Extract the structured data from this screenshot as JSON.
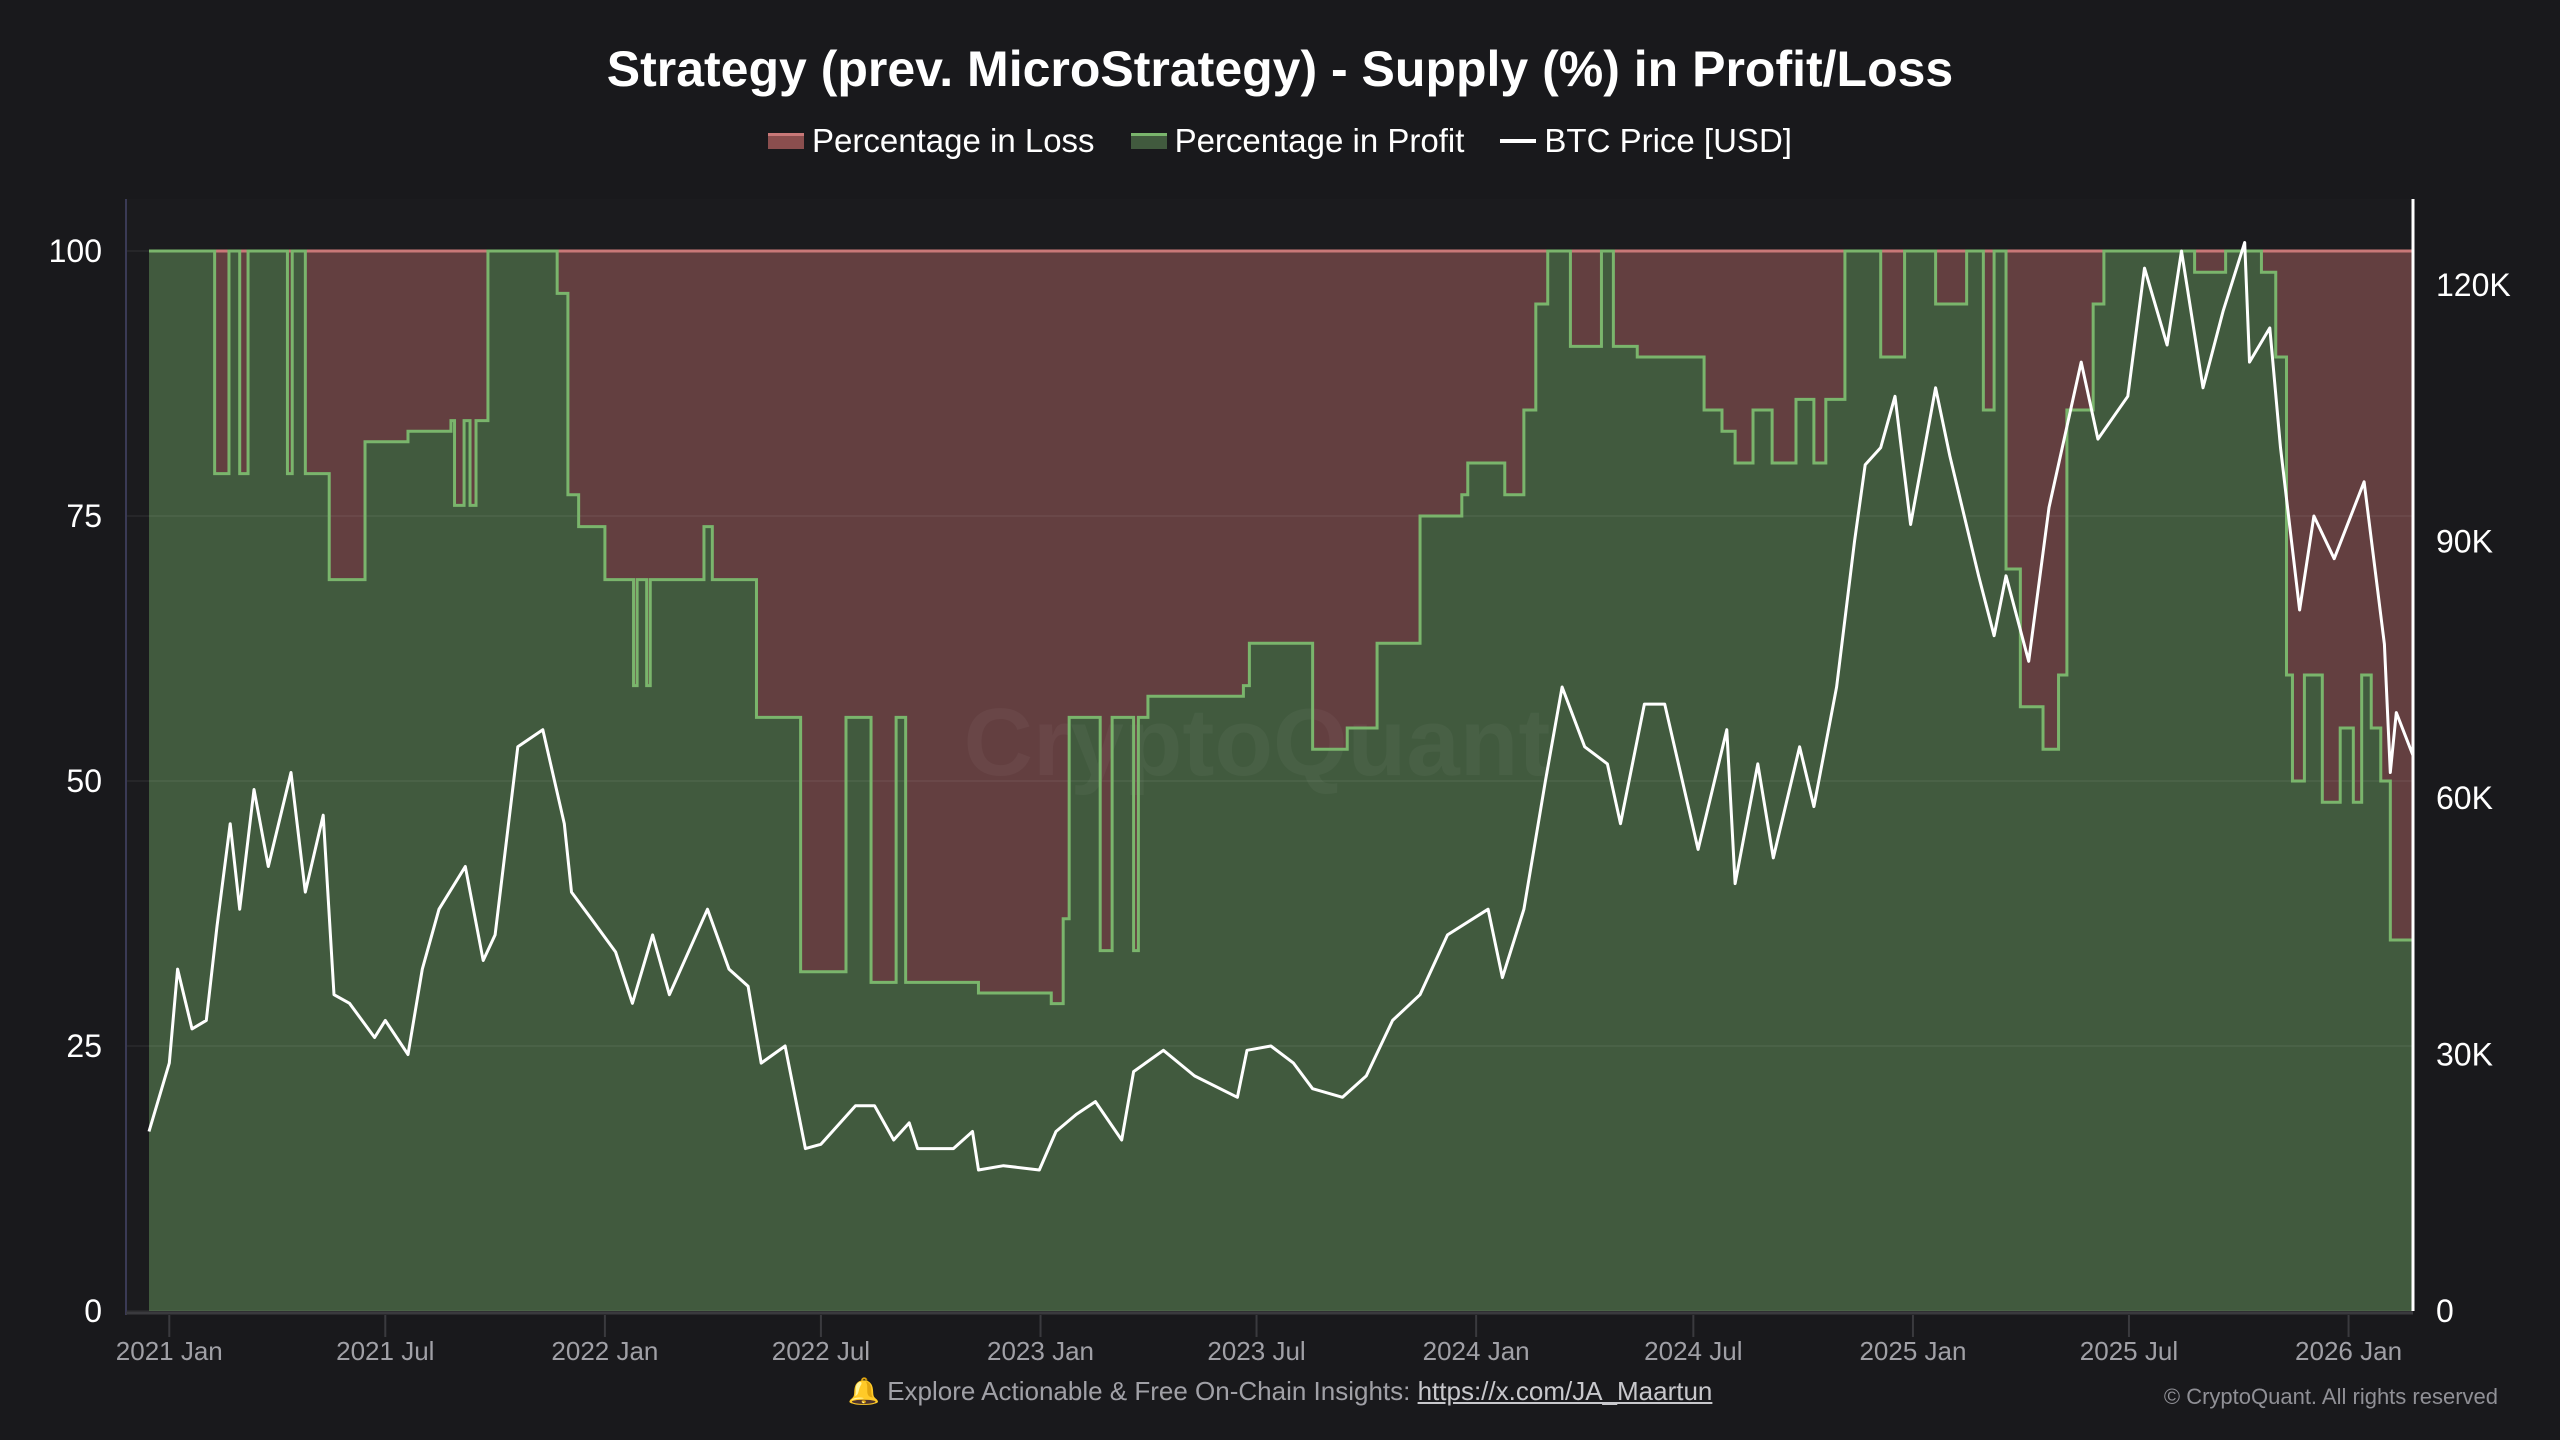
{
  "chart_data": {
    "type": "area",
    "title": "Strategy (prev. MicroStrategy) - Supply (%) in Profit/Loss",
    "legend": {
      "placement": "top-center",
      "entries": [
        "Percentage in Loss",
        "Percentage in Profit",
        "BTC Price [USD]"
      ]
    },
    "xlabel": "",
    "ylabel": "",
    "y2label": "",
    "x_range": [
      "2020-12-15",
      "2026-02-24"
    ],
    "x_ticks": [
      "2021 Jan",
      "2021 Jul",
      "2022 Jan",
      "2022 Jul",
      "2023 Jan",
      "2023 Jul",
      "2024 Jan",
      "2024 Jul",
      "2025 Jan",
      "2025 Jul",
      "2026 Jan"
    ],
    "y_left": {
      "ylim": [
        0,
        100
      ],
      "ticks": [
        "0",
        "25",
        "50",
        "75",
        "100"
      ]
    },
    "y_right": {
      "ylim": [
        0,
        124000
      ],
      "ticks": [
        "0",
        "30K",
        "60K",
        "90K",
        "120K"
      ]
    },
    "grid": true,
    "colors": {
      "loss_fill": "#633f40",
      "loss_line": "#c87878",
      "profit_fill": "#415a3e",
      "profit_line": "#7ab56c",
      "price_line": "#ffffff",
      "background": "#19191c"
    },
    "series": [
      {
        "name": "Percentage in Profit",
        "axis": "left",
        "step": true,
        "points": [
          [
            "2020-12-15",
            100
          ],
          [
            "2021-02-08",
            79
          ],
          [
            "2021-02-20",
            100
          ],
          [
            "2021-03-01",
            79
          ],
          [
            "2021-03-08",
            100
          ],
          [
            "2021-04-10",
            79
          ],
          [
            "2021-04-14",
            100
          ],
          [
            "2021-04-25",
            79
          ],
          [
            "2021-05-15",
            69
          ],
          [
            "2021-06-14",
            82
          ],
          [
            "2021-07-20",
            83
          ],
          [
            "2021-08-25",
            84
          ],
          [
            "2021-08-28",
            76
          ],
          [
            "2021-09-05",
            84
          ],
          [
            "2021-09-10",
            76
          ],
          [
            "2021-09-15",
            84
          ],
          [
            "2021-09-25",
            100
          ],
          [
            "2021-11-22",
            96
          ],
          [
            "2021-12-01",
            77
          ],
          [
            "2021-12-10",
            74
          ],
          [
            "2022-01-01",
            69
          ],
          [
            "2022-01-25",
            59
          ],
          [
            "2022-01-28",
            69
          ],
          [
            "2022-02-05",
            59
          ],
          [
            "2022-02-08",
            69
          ],
          [
            "2022-03-25",
            74
          ],
          [
            "2022-04-01",
            69
          ],
          [
            "2022-05-08",
            56
          ],
          [
            "2022-06-14",
            32
          ],
          [
            "2022-07-22",
            56
          ],
          [
            "2022-08-12",
            31
          ],
          [
            "2022-09-02",
            56
          ],
          [
            "2022-09-10",
            31
          ],
          [
            "2022-11-10",
            30
          ],
          [
            "2023-01-10",
            29
          ],
          [
            "2023-01-20",
            37
          ],
          [
            "2023-01-25",
            56
          ],
          [
            "2023-02-20",
            34
          ],
          [
            "2023-03-02",
            56
          ],
          [
            "2023-03-20",
            34
          ],
          [
            "2023-03-24",
            56
          ],
          [
            "2023-04-01",
            58
          ],
          [
            "2023-06-20",
            59
          ],
          [
            "2023-06-25",
            63
          ],
          [
            "2023-08-17",
            53
          ],
          [
            "2023-09-15",
            55
          ],
          [
            "2023-10-10",
            63
          ],
          [
            "2023-11-15",
            75
          ],
          [
            "2023-12-20",
            77
          ],
          [
            "2023-12-25",
            80
          ],
          [
            "2024-01-25",
            77
          ],
          [
            "2024-02-10",
            85
          ],
          [
            "2024-02-20",
            95
          ],
          [
            "2024-03-01",
            100
          ],
          [
            "2024-03-20",
            91
          ],
          [
            "2024-04-15",
            100
          ],
          [
            "2024-04-25",
            91
          ],
          [
            "2024-05-15",
            90
          ],
          [
            "2024-07-10",
            85
          ],
          [
            "2024-07-25",
            83
          ],
          [
            "2024-08-05",
            80
          ],
          [
            "2024-08-20",
            85
          ],
          [
            "2024-09-05",
            80
          ],
          [
            "2024-09-25",
            86
          ],
          [
            "2024-10-10",
            80
          ],
          [
            "2024-10-20",
            86
          ],
          [
            "2024-11-05",
            100
          ],
          [
            "2024-12-05",
            90
          ],
          [
            "2024-12-25",
            100
          ],
          [
            "2025-01-20",
            95
          ],
          [
            "2025-02-15",
            100
          ],
          [
            "2025-03-01",
            85
          ],
          [
            "2025-03-10",
            100
          ],
          [
            "2025-03-20",
            70
          ],
          [
            "2025-04-01",
            57
          ],
          [
            "2025-04-20",
            53
          ],
          [
            "2025-05-03",
            60
          ],
          [
            "2025-05-10",
            85
          ],
          [
            "2025-06-01",
            95
          ],
          [
            "2025-06-10",
            100
          ],
          [
            "2025-08-25",
            98
          ],
          [
            "2025-09-20",
            100
          ],
          [
            "2025-10-20",
            98
          ],
          [
            "2025-11-01",
            90
          ],
          [
            "2025-11-10",
            60
          ],
          [
            "2025-11-15",
            50
          ],
          [
            "2025-11-25",
            60
          ],
          [
            "2025-12-10",
            48
          ],
          [
            "2025-12-25",
            55
          ],
          [
            "2026-01-05",
            48
          ],
          [
            "2026-01-12",
            60
          ],
          [
            "2026-01-20",
            55
          ],
          [
            "2026-01-28",
            50
          ],
          [
            "2026-02-05",
            35
          ],
          [
            "2026-02-24",
            32
          ]
        ]
      },
      {
        "name": "Percentage in Loss",
        "axis": "left",
        "note_fill": "complement of profit up to 100"
      },
      {
        "name": "BTC Price [USD]",
        "axis": "right",
        "points": [
          [
            "2020-12-15",
            21000
          ],
          [
            "2021-01-01",
            29000
          ],
          [
            "2021-01-08",
            40000
          ],
          [
            "2021-01-20",
            33000
          ],
          [
            "2021-02-01",
            34000
          ],
          [
            "2021-02-10",
            45000
          ],
          [
            "2021-02-21",
            57000
          ],
          [
            "2021-03-01",
            47000
          ],
          [
            "2021-03-13",
            61000
          ],
          [
            "2021-03-25",
            52000
          ],
          [
            "2021-04-13",
            63000
          ],
          [
            "2021-04-25",
            49000
          ],
          [
            "2021-05-10",
            58000
          ],
          [
            "2021-05-19",
            37000
          ],
          [
            "2021-06-01",
            36000
          ],
          [
            "2021-06-22",
            32000
          ],
          [
            "2021-07-01",
            34000
          ],
          [
            "2021-07-20",
            30000
          ],
          [
            "2021-08-01",
            40000
          ],
          [
            "2021-08-15",
            47000
          ],
          [
            "2021-09-06",
            52000
          ],
          [
            "2021-09-21",
            41000
          ],
          [
            "2021-10-01",
            44000
          ],
          [
            "2021-10-20",
            66000
          ],
          [
            "2021-11-10",
            68000
          ],
          [
            "2021-11-28",
            57000
          ],
          [
            "2021-12-04",
            49000
          ],
          [
            "2021-12-20",
            46000
          ],
          [
            "2022-01-10",
            42000
          ],
          [
            "2022-01-24",
            36000
          ],
          [
            "2022-02-10",
            44000
          ],
          [
            "2022-02-24",
            37000
          ],
          [
            "2022-03-28",
            47000
          ],
          [
            "2022-04-15",
            40000
          ],
          [
            "2022-05-01",
            38000
          ],
          [
            "2022-05-12",
            29000
          ],
          [
            "2022-06-01",
            31000
          ],
          [
            "2022-06-18",
            19000
          ],
          [
            "2022-07-01",
            19500
          ],
          [
            "2022-07-30",
            24000
          ],
          [
            "2022-08-15",
            24000
          ],
          [
            "2022-08-31",
            20000
          ],
          [
            "2022-09-13",
            22000
          ],
          [
            "2022-09-20",
            19000
          ],
          [
            "2022-10-20",
            19000
          ],
          [
            "2022-11-05",
            21000
          ],
          [
            "2022-11-10",
            16500
          ],
          [
            "2022-12-01",
            17000
          ],
          [
            "2022-12-31",
            16500
          ],
          [
            "2023-01-14",
            21000
          ],
          [
            "2023-01-31",
            23000
          ],
          [
            "2023-02-16",
            24500
          ],
          [
            "2023-03-10",
            20000
          ],
          [
            "2023-03-20",
            28000
          ],
          [
            "2023-04-14",
            30500
          ],
          [
            "2023-05-10",
            27500
          ],
          [
            "2023-06-15",
            25000
          ],
          [
            "2023-06-23",
            30500
          ],
          [
            "2023-07-13",
            31000
          ],
          [
            "2023-08-01",
            29000
          ],
          [
            "2023-08-17",
            26000
          ],
          [
            "2023-09-11",
            25000
          ],
          [
            "2023-10-01",
            27500
          ],
          [
            "2023-10-23",
            34000
          ],
          [
            "2023-11-15",
            37000
          ],
          [
            "2023-12-08",
            44000
          ],
          [
            "2024-01-11",
            47000
          ],
          [
            "2024-01-23",
            39000
          ],
          [
            "2024-02-10",
            47000
          ],
          [
            "2024-02-28",
            62000
          ],
          [
            "2024-03-13",
            73000
          ],
          [
            "2024-04-01",
            66000
          ],
          [
            "2024-04-20",
            64000
          ],
          [
            "2024-05-01",
            57000
          ],
          [
            "2024-05-21",
            71000
          ],
          [
            "2024-06-07",
            71000
          ],
          [
            "2024-07-05",
            54000
          ],
          [
            "2024-07-29",
            68000
          ],
          [
            "2024-08-05",
            50000
          ],
          [
            "2024-08-24",
            64000
          ],
          [
            "2024-09-06",
            53000
          ],
          [
            "2024-09-28",
            66000
          ],
          [
            "2024-10-10",
            59000
          ],
          [
            "2024-10-29",
            73000
          ],
          [
            "2024-11-13",
            90000
          ],
          [
            "2024-11-22",
            99000
          ],
          [
            "2024-12-05",
            101000
          ],
          [
            "2024-12-17",
            107000
          ],
          [
            "2024-12-30",
            92000
          ],
          [
            "2025-01-20",
            108000
          ],
          [
            "2025-02-01",
            100000
          ],
          [
            "2025-02-25",
            86000
          ],
          [
            "2025-03-10",
            79000
          ],
          [
            "2025-03-20",
            86000
          ],
          [
            "2025-04-08",
            76000
          ],
          [
            "2025-04-25",
            94000
          ],
          [
            "2025-05-22",
            111000
          ],
          [
            "2025-06-05",
            102000
          ],
          [
            "2025-06-30",
            107000
          ],
          [
            "2025-07-14",
            122000
          ],
          [
            "2025-08-02",
            113000
          ],
          [
            "2025-08-14",
            124000
          ],
          [
            "2025-09-01",
            108000
          ],
          [
            "2025-09-18",
            117000
          ],
          [
            "2025-10-06",
            125000
          ],
          [
            "2025-10-10",
            111000
          ],
          [
            "2025-10-27",
            115000
          ],
          [
            "2025-11-05",
            101000
          ],
          [
            "2025-11-21",
            82000
          ],
          [
            "2025-12-03",
            93000
          ],
          [
            "2025-12-20",
            88000
          ],
          [
            "2026-01-14",
            97000
          ],
          [
            "2026-01-31",
            78000
          ],
          [
            "2026-02-05",
            63000
          ],
          [
            "2026-02-10",
            70000
          ],
          [
            "2026-02-24",
            65000
          ]
        ]
      }
    ],
    "watermark": "CryptoQuant"
  },
  "footer": {
    "bell_icon": "bell-icon",
    "text": "Explore Actionable & Free On-Chain Insights: ",
    "link": "https://x.com/JA_Maartun",
    "copyright": "© CryptoQuant. All rights reserved"
  }
}
